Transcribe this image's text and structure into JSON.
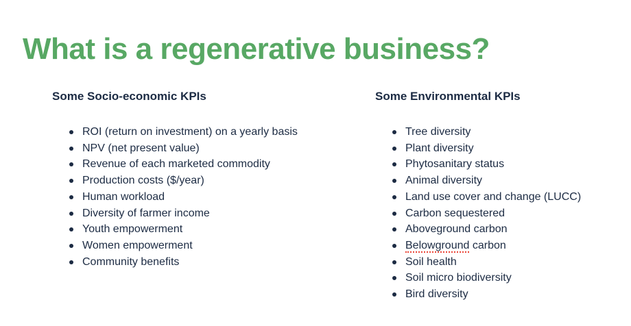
{
  "slide": {
    "title": "What is a regenerative business?",
    "columns": [
      {
        "heading": "Some Socio-economic KPIs",
        "items": [
          "ROI (return on investment) on a yearly basis",
          "NPV (net present value)",
          "Revenue of each marketed commodity",
          "Production costs ($/year)",
          "Human workload",
          "Diversity of farmer income",
          "Youth empowerment",
          "Women empowerment",
          "Community benefits"
        ]
      },
      {
        "heading": "Some Environmental KPIs",
        "items": [
          "Tree diversity",
          "Plant diversity",
          "Phytosanitary status",
          "Animal diversity",
          "Land use cover and change (LUCC)",
          "Carbon sequestered",
          "Aboveground carbon",
          {
            "text": "Belowground carbon",
            "spell_error": "Belowground"
          },
          "Soil health",
          "Soil micro biodiversity",
          "Bird diversity"
        ]
      }
    ],
    "colors": {
      "background": "#ffffff",
      "title_green": "#58a864",
      "body_navy": "#1c2b43",
      "spellcheck_red": "#ea4335"
    }
  }
}
